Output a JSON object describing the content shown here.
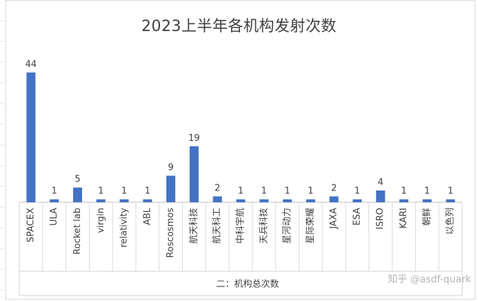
{
  "chart_data": {
    "type": "bar",
    "title": "2023上半年各机构发射次数",
    "categories": [
      "SPACEX",
      "ULA",
      "Rocket lab",
      "virgin",
      "relativity",
      "ABL",
      "Roscosmos",
      "航天科技",
      "航天科工",
      "中科宇航",
      "天兵科技",
      "星河动力",
      "星际荣耀",
      "JAXA",
      "ESA",
      "ISRO",
      "KARI",
      "朝鲜",
      "以色列"
    ],
    "series": [
      {
        "values": [
          44,
          1,
          5,
          1,
          1,
          1,
          9,
          19,
          2,
          1,
          1,
          1,
          1,
          2,
          1,
          4,
          1,
          1,
          1
        ]
      }
    ],
    "xlabel": "二：机构总次数",
    "ylabel": "",
    "ylim": [
      0,
      50
    ],
    "grid": false,
    "bar_color": "#4472c4"
  },
  "watermark": "知乎 @asdf-quark"
}
